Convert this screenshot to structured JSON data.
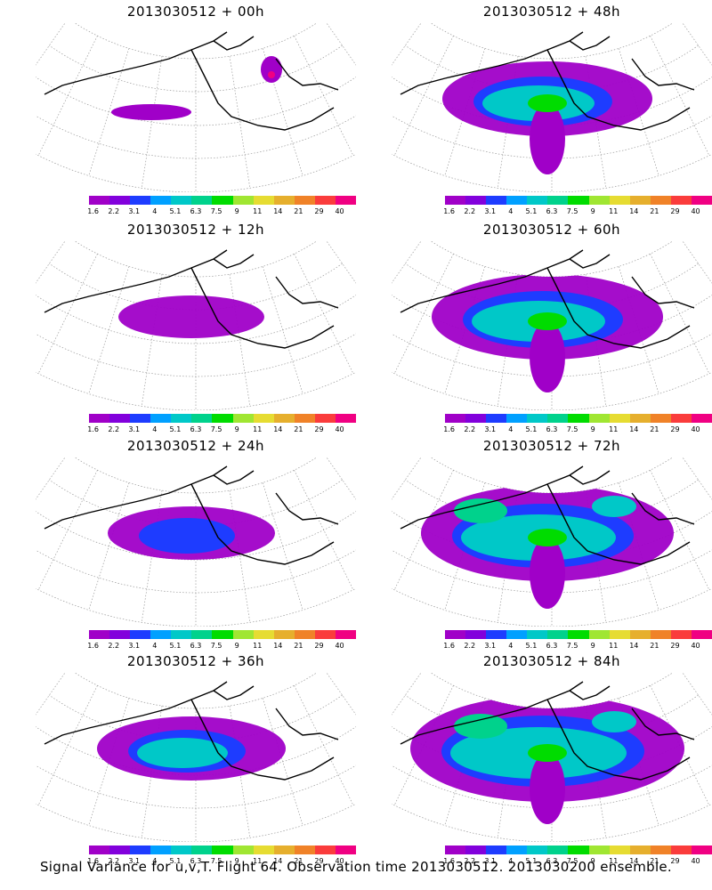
{
  "caption": "Signal Variance for u,v,T. Flight 64. Observation time 2013030512. 2013030200 ensemble.",
  "colorbar": {
    "colors": [
      "#a000c8",
      "#8200dc",
      "#1e3cff",
      "#00a0ff",
      "#00c8c8",
      "#00d28c",
      "#00dc00",
      "#a0e632",
      "#e6dc32",
      "#e6af2d",
      "#f08228",
      "#fa3c3c",
      "#f00082"
    ],
    "ticks": [
      "1.6",
      "2.2",
      "3.1",
      "4",
      "5.1",
      "6.3",
      "7.5",
      "9",
      "11",
      "14",
      "21",
      "29",
      "40"
    ]
  },
  "panels": [
    {
      "title": "2013030512 + 00h",
      "intensity": 0
    },
    {
      "title": "2013030512 + 48h",
      "intensity": 4
    },
    {
      "title": "2013030512 + 12h",
      "intensity": 1
    },
    {
      "title": "2013030512 + 60h",
      "intensity": 5
    },
    {
      "title": "2013030512 + 24h",
      "intensity": 2
    },
    {
      "title": "2013030512 + 72h",
      "intensity": 6
    },
    {
      "title": "2013030512 + 36h",
      "intensity": 3
    },
    {
      "title": "2013030512 + 84h",
      "intensity": 7
    }
  ]
}
